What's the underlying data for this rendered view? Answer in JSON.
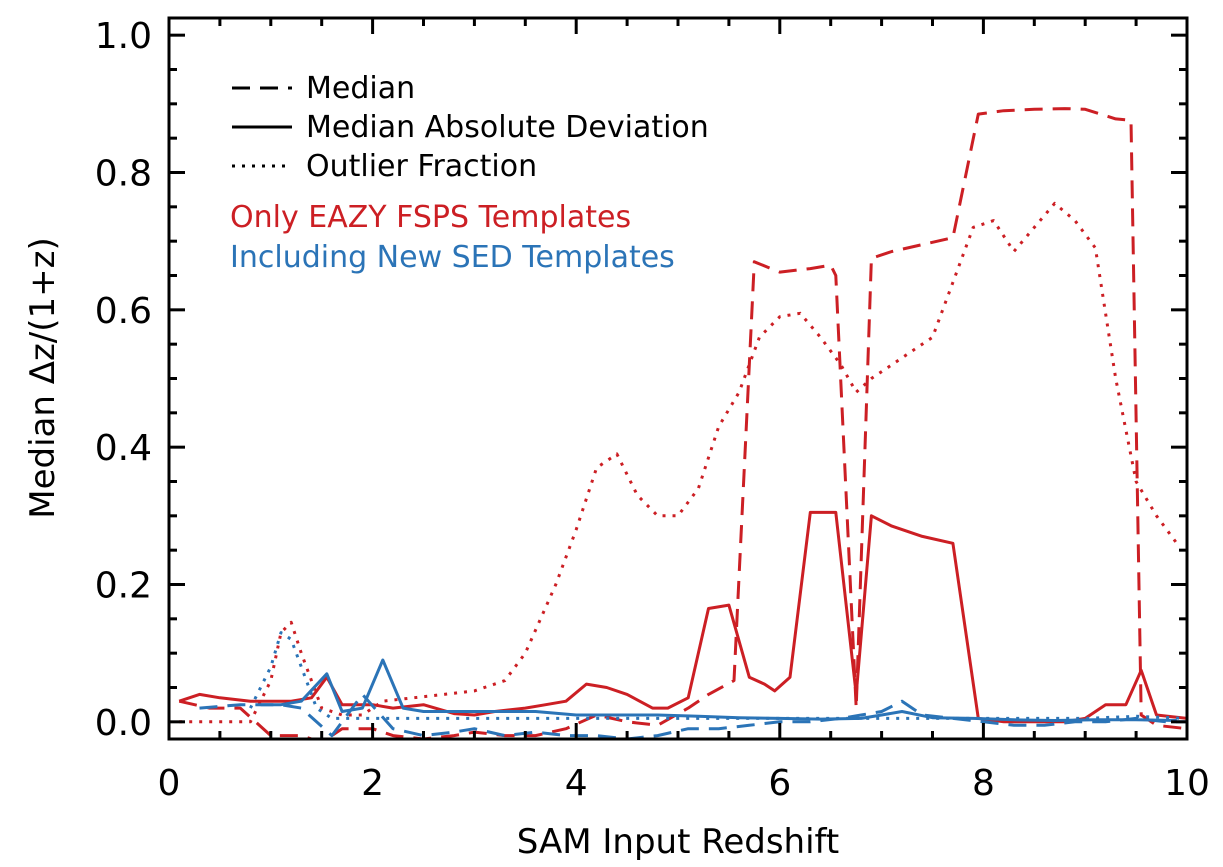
{
  "chart_data": {
    "type": "line",
    "title": "",
    "xlabel": "SAM Input Redshift",
    "ylabel": "Median Δz/(1+z)",
    "xlim": [
      0,
      10
    ],
    "ylim": [
      -0.025,
      1.025
    ],
    "xticks": [
      0,
      2,
      4,
      6,
      8,
      10
    ],
    "xtick_labels": [
      "0",
      "2",
      "4",
      "6",
      "8",
      "10"
    ],
    "yticks": [
      0.0,
      0.2,
      0.4,
      0.6,
      0.8,
      1.0
    ],
    "ytick_labels": [
      "0.0",
      "0.2",
      "0.4",
      "0.6",
      "0.8",
      "1.0"
    ],
    "grid": false,
    "legend": {
      "placement": "top-left",
      "style_entries": [
        {
          "label": "Median",
          "dash": "dashed"
        },
        {
          "label": "Median Absolute Deviation",
          "dash": "solid"
        },
        {
          "label": "Outlier Fraction",
          "dash": "dotted"
        }
      ],
      "color_entries": [
        {
          "label": "Only EAZY FSPS Templates",
          "color": "#cc1f24"
        },
        {
          "label": "Including New SED Templates",
          "color": "#2b74b7"
        }
      ]
    },
    "series": [
      {
        "name": "Only EAZY FSPS Templates - Median",
        "color": "#cc1f24",
        "dash": "dashed",
        "x": [
          0.1,
          0.4,
          0.7,
          1.0,
          1.3,
          1.5,
          1.7,
          2.0,
          2.2,
          2.5,
          2.8,
          3.0,
          3.3,
          3.6,
          3.9,
          4.2,
          4.5,
          4.8,
          5.1,
          5.3,
          5.55,
          5.75,
          6.0,
          6.3,
          6.5,
          6.55,
          6.75,
          6.9,
          7.1,
          7.4,
          7.7,
          7.95,
          8.2,
          8.5,
          8.8,
          9.0,
          9.3,
          9.45,
          9.55,
          9.7,
          10.0
        ],
        "y": [
          0.03,
          0.02,
          0.02,
          -0.02,
          -0.02,
          -0.03,
          -0.01,
          -0.01,
          -0.02,
          -0.025,
          -0.02,
          -0.015,
          -0.02,
          -0.02,
          -0.01,
          0.01,
          0.0,
          -0.005,
          0.02,
          0.04,
          0.06,
          0.67,
          0.655,
          0.66,
          0.665,
          0.65,
          0.02,
          0.675,
          0.685,
          0.695,
          0.705,
          0.885,
          0.89,
          0.892,
          0.893,
          0.892,
          0.878,
          0.876,
          0.01,
          -0.005,
          -0.01
        ]
      },
      {
        "name": "Only EAZY FSPS Templates - Median Absolute Deviation",
        "color": "#cc1f24",
        "dash": "solid",
        "x": [
          0.1,
          0.3,
          0.5,
          0.8,
          1.0,
          1.2,
          1.4,
          1.55,
          1.7,
          2.0,
          2.2,
          2.5,
          2.8,
          3.0,
          3.2,
          3.5,
          3.7,
          3.9,
          4.1,
          4.3,
          4.5,
          4.75,
          4.9,
          5.1,
          5.3,
          5.5,
          5.7,
          5.85,
          5.95,
          6.1,
          6.3,
          6.45,
          6.55,
          6.75,
          6.9,
          7.1,
          7.4,
          7.7,
          7.95,
          8.2,
          8.5,
          8.8,
          9.0,
          9.2,
          9.4,
          9.55,
          9.7,
          10.0
        ],
        "y": [
          0.03,
          0.04,
          0.035,
          0.03,
          0.03,
          0.03,
          0.035,
          0.065,
          0.025,
          0.025,
          0.02,
          0.025,
          0.012,
          0.01,
          0.015,
          0.02,
          0.025,
          0.03,
          0.055,
          0.05,
          0.04,
          0.02,
          0.02,
          0.035,
          0.165,
          0.17,
          0.065,
          0.055,
          0.045,
          0.065,
          0.305,
          0.305,
          0.305,
          0.04,
          0.3,
          0.285,
          0.27,
          0.26,
          0.005,
          0.0,
          0.0,
          0.0,
          0.005,
          0.025,
          0.025,
          0.075,
          0.01,
          0.005
        ]
      },
      {
        "name": "Only EAZY FSPS Templates - Outlier Fraction",
        "color": "#cc1f24",
        "dash": "dotted",
        "x": [
          0.1,
          0.5,
          0.8,
          1.0,
          1.1,
          1.2,
          1.3,
          1.5,
          1.7,
          1.9,
          2.1,
          2.4,
          2.7,
          3.0,
          3.3,
          3.5,
          3.8,
          4.0,
          4.2,
          4.4,
          4.6,
          4.8,
          5.0,
          5.2,
          5.4,
          5.6,
          5.8,
          6.0,
          6.2,
          6.4,
          6.6,
          6.75,
          6.9,
          7.1,
          7.3,
          7.5,
          7.7,
          7.9,
          8.1,
          8.3,
          8.5,
          8.7,
          8.9,
          9.1,
          9.3,
          9.5,
          9.7,
          9.9
        ],
        "y": [
          0.0,
          0.0,
          0.0,
          0.06,
          0.13,
          0.145,
          0.1,
          0.02,
          0.01,
          0.01,
          0.03,
          0.035,
          0.04,
          0.045,
          0.06,
          0.1,
          0.2,
          0.28,
          0.37,
          0.39,
          0.33,
          0.3,
          0.3,
          0.34,
          0.43,
          0.48,
          0.56,
          0.59,
          0.595,
          0.56,
          0.52,
          0.48,
          0.5,
          0.52,
          0.54,
          0.56,
          0.64,
          0.72,
          0.73,
          0.685,
          0.72,
          0.755,
          0.73,
          0.69,
          0.5,
          0.35,
          0.3,
          0.26
        ]
      },
      {
        "name": "Including New SED Templates - Median",
        "color": "#2b74b7",
        "dash": "dashed",
        "x": [
          0.3,
          0.7,
          1.1,
          1.3,
          1.6,
          1.9,
          2.2,
          2.5,
          2.8,
          3.0,
          3.3,
          3.6,
          3.9,
          4.2,
          4.5,
          4.8,
          5.1,
          5.4,
          5.7,
          6.0,
          6.3,
          6.6,
          6.8,
          7.0,
          7.2,
          7.4,
          7.7,
          8.0,
          8.3,
          8.6,
          8.9,
          9.2,
          9.5,
          9.8,
          10.0
        ],
        "y": [
          0.02,
          0.025,
          0.025,
          0.02,
          -0.02,
          0.04,
          -0.01,
          -0.02,
          -0.015,
          -0.01,
          -0.02,
          -0.015,
          -0.02,
          -0.02,
          -0.025,
          -0.02,
          -0.01,
          -0.01,
          -0.005,
          0.0,
          0.0,
          0.005,
          0.01,
          0.015,
          0.03,
          0.01,
          0.005,
          0.0,
          -0.005,
          -0.005,
          0.0,
          0.0,
          0.005,
          0.0,
          0.0
        ]
      },
      {
        "name": "Including New SED Templates - Median Absolute Deviation",
        "color": "#2b74b7",
        "dash": "solid",
        "x": [
          0.9,
          1.1,
          1.3,
          1.55,
          1.7,
          1.9,
          2.1,
          2.3,
          2.5,
          2.8,
          3.2,
          3.6,
          4.0,
          4.4,
          4.8,
          5.2,
          5.6,
          6.0,
          6.4,
          6.8,
          7.0,
          7.2,
          7.5,
          7.9,
          8.3,
          8.7,
          9.1,
          9.5,
          9.9
        ],
        "y": [
          0.025,
          0.025,
          0.03,
          0.07,
          0.015,
          0.02,
          0.09,
          0.02,
          0.015,
          0.015,
          0.015,
          0.015,
          0.01,
          0.01,
          0.01,
          0.008,
          0.006,
          0.005,
          0.004,
          0.005,
          0.01,
          0.015,
          0.006,
          0.005,
          0.003,
          0.002,
          0.003,
          0.003,
          0.002
        ]
      },
      {
        "name": "Including New SED Templates - Outlier Fraction",
        "color": "#2b74b7",
        "dash": "dotted",
        "x": [
          0.8,
          1.0,
          1.1,
          1.2,
          1.3,
          1.45,
          1.6,
          1.8,
          2.0,
          2.5,
          3.0,
          4.0,
          5.0,
          6.0,
          7.0,
          8.0,
          9.0,
          9.5,
          10.0
        ],
        "y": [
          0.02,
          0.08,
          0.13,
          0.12,
          0.08,
          0.02,
          0.005,
          0.005,
          0.005,
          0.005,
          0.005,
          0.005,
          0.005,
          0.005,
          0.005,
          0.005,
          0.005,
          0.008,
          0.005
        ]
      }
    ]
  }
}
